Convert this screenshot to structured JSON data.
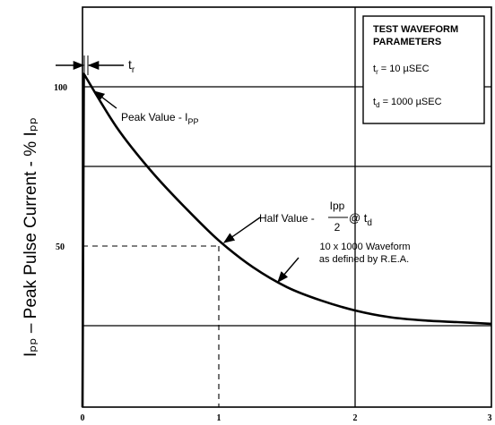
{
  "chart_data": {
    "type": "line",
    "title": "",
    "xlabel": "",
    "ylabel": "Iₚₚ – Peak Pulse Current - % Iₚₚ",
    "x_ticks": [
      "0",
      "1",
      "2",
      "3"
    ],
    "y_ticks": [
      "100",
      "50"
    ],
    "xlim": [
      0,
      3
    ],
    "ylim": [
      0,
      120
    ],
    "grid": true,
    "series": [
      {
        "name": "",
        "x": [
          0,
          0.01,
          0.25,
          0.5,
          0.75,
          1.0,
          1.25,
          1.5,
          1.75,
          2.0,
          2.25,
          2.5,
          2.75,
          3.0
        ],
        "y": [
          0,
          100,
          84,
          71,
          60,
          50,
          42,
          36,
          32,
          29,
          27,
          26,
          25.5,
          25
        ]
      }
    ],
    "annotations": {
      "tr": {
        "main": "t",
        "sub": "r"
      },
      "peak": {
        "main": "Peak Value - I",
        "sub": "PP"
      },
      "half": {
        "prefix": "Half Value - ",
        "numer": "Ipp",
        "denom": "2",
        "at": " @ t",
        "sub": "d"
      },
      "waveform": [
        "10 x 1000 Waveform",
        "as defined by R.E.A."
      ]
    },
    "legend_box": {
      "title": [
        "TEST WAVEFORM",
        "PARAMETERS"
      ],
      "lines": [
        {
          "main": "t",
          "sub": "r",
          "rest": " = 10 µSEC"
        },
        {
          "main": "t",
          "sub": "d",
          "rest": " = 1000 µSEC"
        }
      ]
    }
  }
}
